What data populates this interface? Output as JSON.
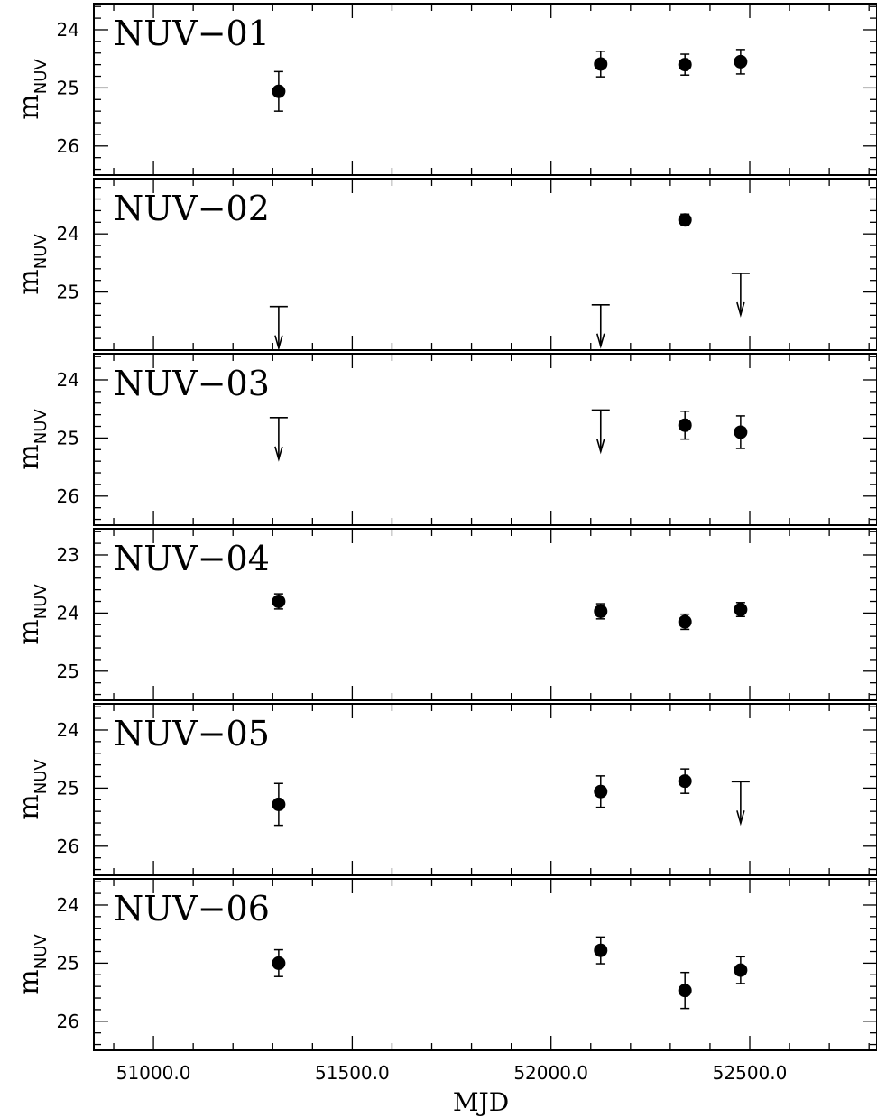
{
  "chart_data": {
    "type": "scatter",
    "xlabel": "MJD",
    "ylabel": "m",
    "ylabel_subscript": "NUV",
    "xlim": [
      50850,
      52820
    ],
    "x_ticks": [
      51000,
      51500,
      52000,
      52500
    ],
    "x_tick_labels": [
      "51000.0",
      "51500.0",
      "52000.0",
      "52500.0"
    ],
    "y_inverted": true,
    "grid": false,
    "legend": "none",
    "panels": [
      {
        "title": "NUV−01",
        "ylim": [
          23.55,
          26.5
        ],
        "y_ticks": [
          24,
          25,
          26
        ],
        "points": [
          {
            "x": 51315,
            "y": 25.06,
            "err": 0.34
          },
          {
            "x": 52125,
            "y": 24.59,
            "err": 0.22
          },
          {
            "x": 52337,
            "y": 24.6,
            "err": 0.18
          },
          {
            "x": 52477,
            "y": 24.55,
            "err": 0.21
          }
        ],
        "upper_limits": []
      },
      {
        "title": "NUV−02",
        "ylim": [
          23.05,
          26.0
        ],
        "y_ticks": [
          24,
          25
        ],
        "points": [
          {
            "x": 52337,
            "y": 23.76,
            "err": 0.1
          }
        ],
        "upper_limits": [
          {
            "x": 51315,
            "y": 25.25
          },
          {
            "x": 52125,
            "y": 25.22
          },
          {
            "x": 52477,
            "y": 24.68
          }
        ]
      },
      {
        "title": "NUV−03",
        "ylim": [
          23.55,
          26.5
        ],
        "y_ticks": [
          24,
          25,
          26
        ],
        "points": [
          {
            "x": 52337,
            "y": 24.78,
            "err": 0.24
          },
          {
            "x": 52477,
            "y": 24.9,
            "err": 0.28
          }
        ],
        "upper_limits": [
          {
            "x": 51315,
            "y": 24.65
          },
          {
            "x": 52125,
            "y": 24.52
          }
        ]
      },
      {
        "title": "NUV−04",
        "ylim": [
          22.55,
          25.5
        ],
        "y_ticks": [
          23,
          24,
          25
        ],
        "points": [
          {
            "x": 51315,
            "y": 23.8,
            "err": 0.13
          },
          {
            "x": 52125,
            "y": 23.97,
            "err": 0.13
          },
          {
            "x": 52337,
            "y": 24.15,
            "err": 0.13
          },
          {
            "x": 52477,
            "y": 23.94,
            "err": 0.12
          }
        ],
        "upper_limits": []
      },
      {
        "title": "NUV−05",
        "ylim": [
          23.55,
          26.5
        ],
        "y_ticks": [
          24,
          25,
          26
        ],
        "points": [
          {
            "x": 51315,
            "y": 25.28,
            "err": 0.36
          },
          {
            "x": 52125,
            "y": 25.06,
            "err": 0.27
          },
          {
            "x": 52337,
            "y": 24.88,
            "err": 0.21
          }
        ],
        "upper_limits": [
          {
            "x": 52477,
            "y": 24.89
          }
        ]
      },
      {
        "title": "NUV−06",
        "ylim": [
          23.55,
          26.5
        ],
        "y_ticks": [
          24,
          25,
          26
        ],
        "points": [
          {
            "x": 51315,
            "y": 25.0,
            "err": 0.23
          },
          {
            "x": 52125,
            "y": 24.78,
            "err": 0.23
          },
          {
            "x": 52337,
            "y": 25.47,
            "err": 0.31
          },
          {
            "x": 52477,
            "y": 25.12,
            "err": 0.23
          }
        ],
        "upper_limits": []
      }
    ]
  }
}
